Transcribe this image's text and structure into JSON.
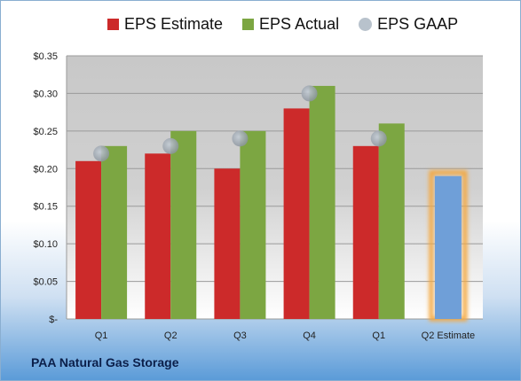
{
  "chart_data": {
    "type": "bar",
    "title": "",
    "xlabel": "",
    "ylabel": "",
    "categories": [
      "Q1",
      "Q2",
      "Q3",
      "Q4",
      "Q1",
      "Q2 Estimate"
    ],
    "series": [
      {
        "name": "EPS Estimate",
        "color": "#cc2a2a",
        "values": [
          0.21,
          0.22,
          0.2,
          0.28,
          0.23,
          null
        ]
      },
      {
        "name": "EPS Actual",
        "color": "#7ca642",
        "values": [
          0.23,
          0.25,
          0.25,
          0.31,
          0.26,
          null
        ]
      },
      {
        "name": "EPS GAAP",
        "color": "#a9b4bf",
        "values": [
          0.22,
          0.23,
          0.24,
          0.3,
          0.24,
          null
        ]
      }
    ],
    "estimate_bar": {
      "category": "Q2 Estimate",
      "value": 0.19,
      "color": "#6f9fd8",
      "glow": "#f4a840"
    },
    "ylim": [
      0,
      0.35
    ],
    "y_ticks": [
      {
        "value": 0.35,
        "label": "$0.35"
      },
      {
        "value": 0.3,
        "label": "$0.30"
      },
      {
        "value": 0.25,
        "label": "$0.25"
      },
      {
        "value": 0.2,
        "label": "$0.20"
      },
      {
        "value": 0.15,
        "label": "$0.15"
      },
      {
        "value": 0.1,
        "label": "$0.10"
      },
      {
        "value": 0.05,
        "label": "$0.05"
      },
      {
        "value": 0.0,
        "label": "$-"
      }
    ],
    "grid": true,
    "legend_position": "top"
  },
  "footer": {
    "label": "PAA Natural Gas Storage"
  }
}
